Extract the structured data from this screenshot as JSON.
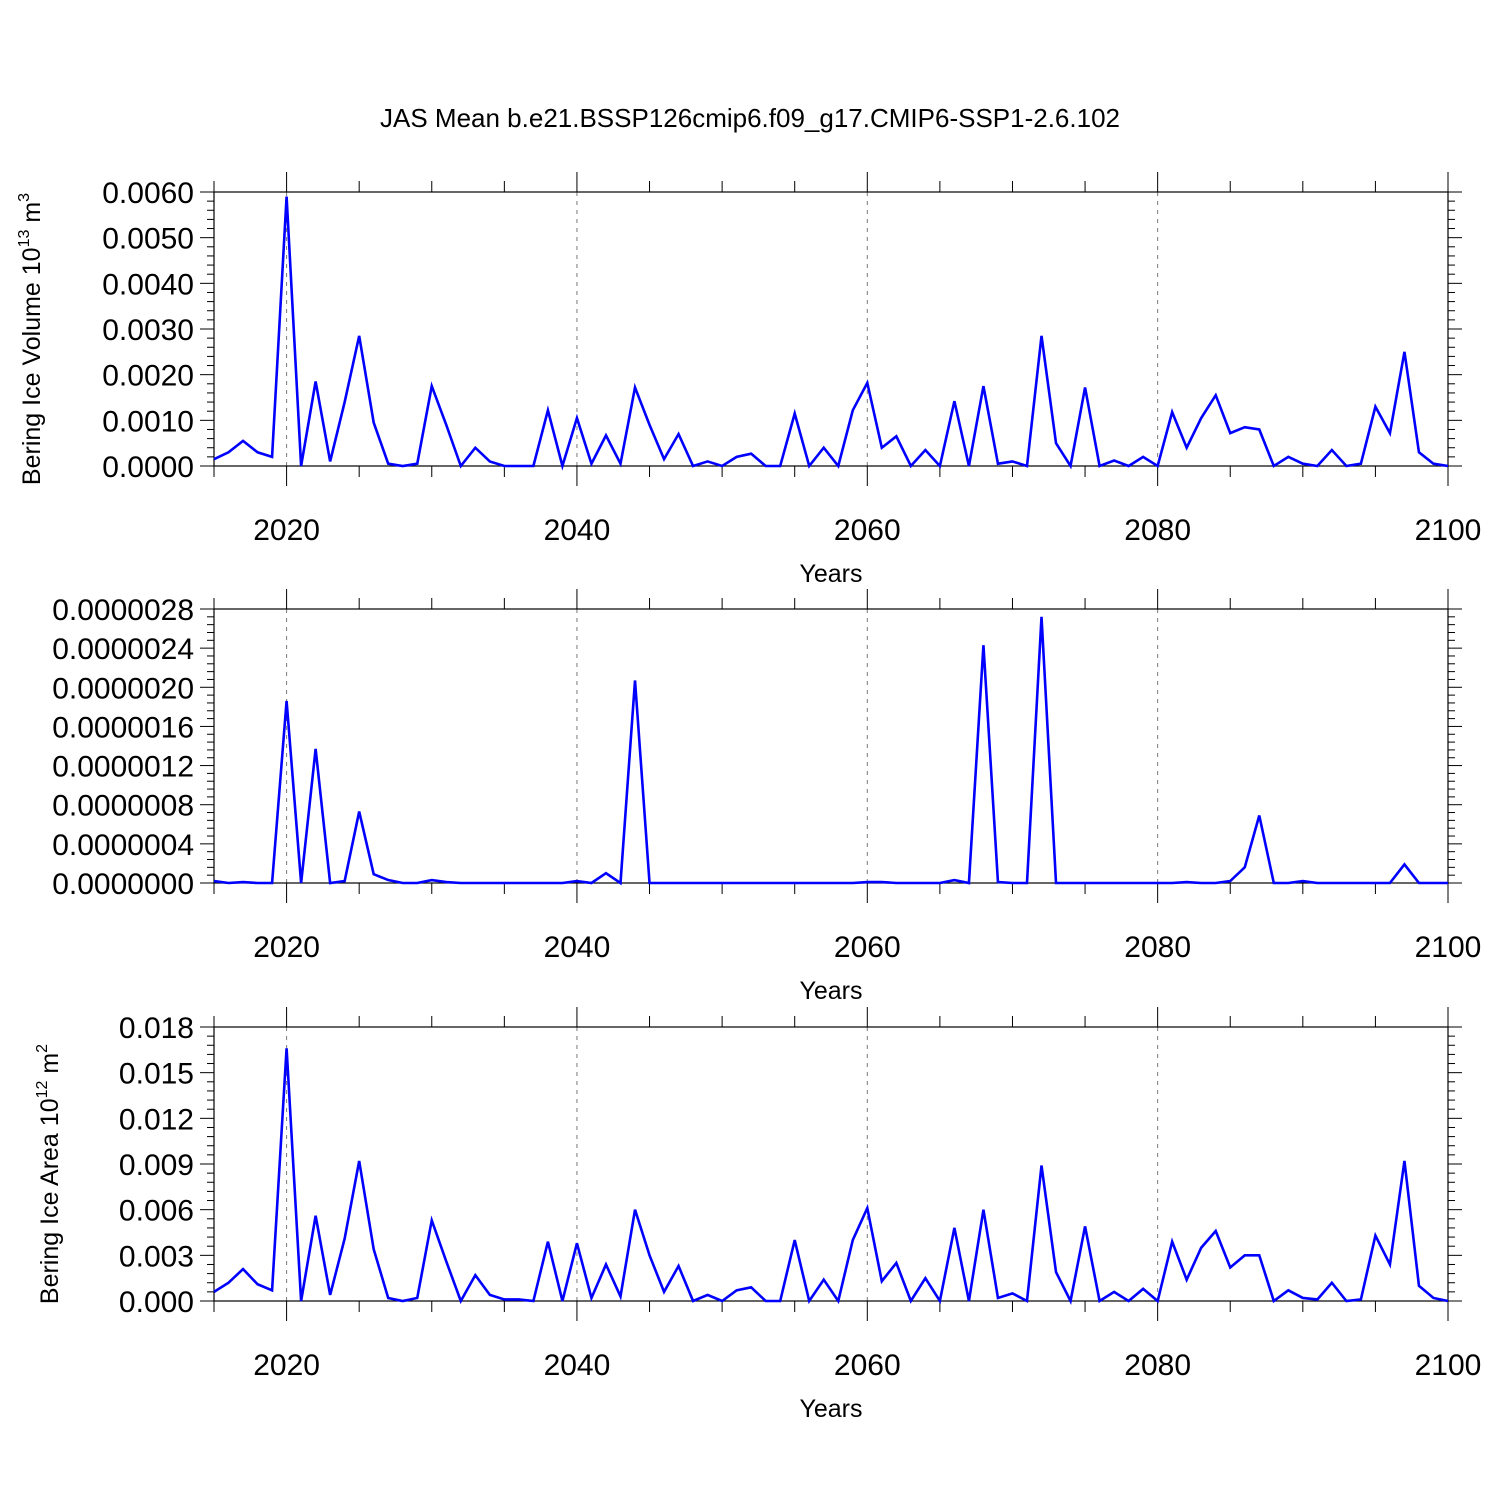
{
  "figure": {
    "title": "JAS Mean b.e21.BSSP126cmip6.f09_g17.CMIP6-SSP1-2.6.102"
  },
  "colors": {
    "line": "#0000ff",
    "grid": "#7a7a7a",
    "axis": "#000000"
  },
  "chart_data": [
    {
      "type": "line",
      "ylabel": "Bering Ice Volume 10",
      "ylabel_sup": "13",
      "ylabel_unit": " m",
      "ylabel_unit_sup": "3",
      "xlabel": "Years",
      "xlim": [
        2015,
        2100
      ],
      "ylim": [
        0,
        0.006
      ],
      "x_ticks": [
        2020,
        2040,
        2060,
        2080,
        2100
      ],
      "y_ticks": [
        "0.0000",
        "0.0010",
        "0.0020",
        "0.0030",
        "0.0040",
        "0.0050",
        "0.0060"
      ],
      "y_tick_values": [
        0,
        0.001,
        0.002,
        0.003,
        0.004,
        0.005,
        0.006
      ],
      "gridlines": [
        2020,
        2040,
        2060,
        2080
      ],
      "x_start": 2015,
      "values": [
        0.00015,
        0.0003,
        0.00055,
        0.0003,
        0.0002,
        0.0059,
        0.0,
        0.00185,
        0.0001,
        0.0014,
        0.00285,
        0.00095,
        5e-05,
        0.0,
        5e-05,
        0.00175,
        0.0009,
        0.0,
        0.0004,
        0.0001,
        0.0,
        0.0,
        0.0,
        0.00122,
        0.0,
        0.00105,
        5e-05,
        0.00067,
        5e-05,
        0.00172,
        0.0009,
        0.00015,
        0.0007,
        0.0,
        0.0001,
        0.0,
        0.0002,
        0.00027,
        0.0,
        0.0,
        0.00115,
        0.0,
        0.0004,
        0.0,
        0.00122,
        0.00182,
        0.0004,
        0.00065,
        0.0,
        0.00035,
        0.0,
        0.00142,
        0.0,
        0.00175,
        5e-05,
        0.0001,
        0.0,
        0.00285,
        0.0005,
        0.0,
        0.00172,
        0.0,
        0.00012,
        0.0,
        0.0002,
        0.0,
        0.00118,
        0.0004,
        0.00105,
        0.00155,
        0.00072,
        0.00085,
        0.0008,
        0.0,
        0.0002,
        5e-05,
        0.0,
        0.00035,
        0.0,
        5e-05,
        0.0013,
        0.00072,
        0.0025,
        0.0003,
        5e-05,
        0.0
      ]
    },
    {
      "type": "line",
      "ylabel": "",
      "xlabel": "Years",
      "xlim": [
        2015,
        2100
      ],
      "ylim": [
        0,
        2.8e-06
      ],
      "x_ticks": [
        2020,
        2040,
        2060,
        2080,
        2100
      ],
      "y_ticks": [
        "0.0000000",
        "0.0000004",
        "0.0000008",
        "0.0000012",
        "0.0000016",
        "0.0000020",
        "0.0000024",
        "0.0000028"
      ],
      "y_tick_values": [
        0,
        4e-07,
        8e-07,
        1.2e-06,
        1.6e-06,
        2e-06,
        2.4e-06,
        2.8e-06
      ],
      "gridlines": [
        2020,
        2040,
        2060,
        2080
      ],
      "x_start": 2015,
      "values": [
        2e-08,
        0.0,
        1e-08,
        0.0,
        0.0,
        1.86e-06,
        0.0,
        1.37e-06,
        0.0,
        2e-08,
        7.3e-07,
        9e-08,
        3e-08,
        0.0,
        0.0,
        3e-08,
        1e-08,
        0.0,
        0.0,
        0.0,
        0.0,
        0.0,
        0.0,
        0.0,
        0.0,
        2e-08,
        0.0,
        1e-07,
        0.0,
        2.07e-06,
        0.0,
        0.0,
        0.0,
        0.0,
        0.0,
        0.0,
        0.0,
        0.0,
        0.0,
        0.0,
        0.0,
        0.0,
        0.0,
        0.0,
        0.0,
        1e-08,
        1e-08,
        0.0,
        0.0,
        0.0,
        0.0,
        3e-08,
        0.0,
        2.43e-06,
        1e-08,
        0.0,
        0.0,
        2.72e-06,
        0.0,
        0.0,
        0.0,
        0.0,
        0.0,
        0.0,
        0.0,
        0.0,
        0.0,
        1e-08,
        0.0,
        0.0,
        2e-08,
        1.6e-07,
        6.9e-07,
        0.0,
        0.0,
        2e-08,
        0.0,
        0.0,
        0.0,
        0.0,
        0.0,
        0.0,
        1.9e-07,
        0.0,
        0.0,
        0.0
      ]
    },
    {
      "type": "line",
      "ylabel": "Bering Ice Area 10",
      "ylabel_sup": "12",
      "ylabel_unit": " m",
      "ylabel_unit_sup": "2",
      "xlabel": "Years",
      "xlim": [
        2015,
        2100
      ],
      "ylim": [
        0,
        0.018
      ],
      "x_ticks": [
        2020,
        2040,
        2060,
        2080,
        2100
      ],
      "y_ticks": [
        "0.000",
        "0.003",
        "0.006",
        "0.009",
        "0.012",
        "0.015",
        "0.018"
      ],
      "y_tick_values": [
        0,
        0.003,
        0.006,
        0.009,
        0.012,
        0.015,
        0.018
      ],
      "gridlines": [
        2020,
        2040,
        2060,
        2080
      ],
      "x_start": 2015,
      "values": [
        0.0006,
        0.0012,
        0.0021,
        0.0011,
        0.0007,
        0.0166,
        0.0,
        0.0056,
        0.0004,
        0.0041,
        0.0092,
        0.0034,
        0.0002,
        0.0,
        0.0002,
        0.0053,
        0.0026,
        0.0,
        0.0017,
        0.0004,
        0.0001,
        0.0001,
        0.0,
        0.0039,
        0.0,
        0.0038,
        0.0002,
        0.0024,
        0.0003,
        0.006,
        0.003,
        0.0006,
        0.0023,
        0.0,
        0.0004,
        0.0,
        0.0007,
        0.0009,
        0.0,
        0.0,
        0.004,
        0.0,
        0.0014,
        0.0,
        0.004,
        0.0061,
        0.0013,
        0.0025,
        0.0,
        0.0015,
        0.0,
        0.0048,
        0.0,
        0.006,
        0.0002,
        0.0005,
        0.0,
        0.0089,
        0.0019,
        0.0,
        0.0049,
        0.0,
        0.0006,
        0.0,
        0.0008,
        0.0,
        0.0039,
        0.0014,
        0.0035,
        0.0046,
        0.0022,
        0.003,
        0.003,
        0.0,
        0.0007,
        0.0002,
        0.0001,
        0.0012,
        0.0,
        0.0001,
        0.0043,
        0.0024,
        0.0092,
        0.001,
        0.0002,
        0.0
      ]
    }
  ]
}
